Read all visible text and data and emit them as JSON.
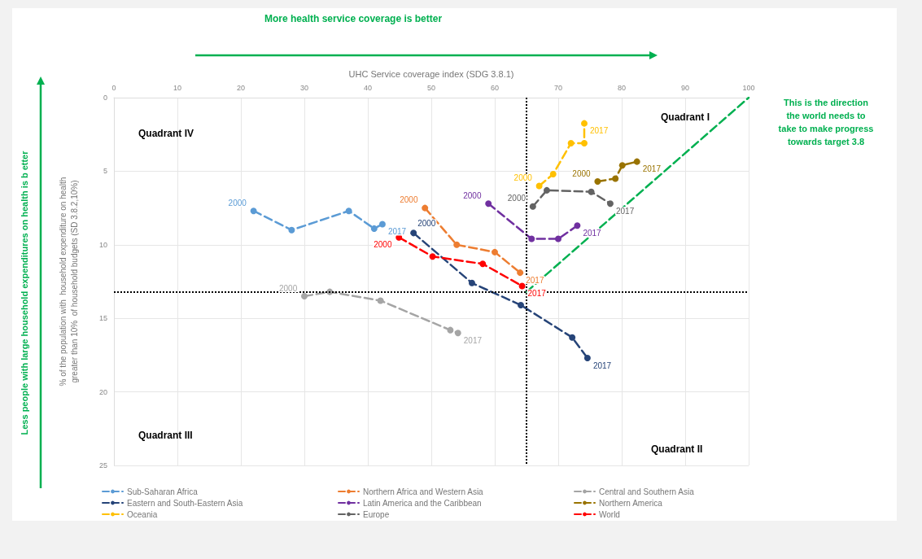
{
  "chart_data": {
    "type": "line",
    "title": "More health service coverage is better",
    "xlabel": "UHC Service coverage index (SDG 3.8.1)",
    "ylabel": "% of the population with  household expenditure on health\ngreater than 10%  of household budgets (SD 3.8.2,10%)",
    "xlim": [
      0,
      100
    ],
    "xticks": [
      0,
      10,
      20,
      30,
      40,
      50,
      60,
      70,
      80,
      90,
      100
    ],
    "ylim": [
      25,
      0
    ],
    "yticks": [
      0,
      5,
      10,
      15,
      20,
      25
    ],
    "grid": true,
    "legend": "bottom",
    "marker": "circle",
    "line_style": "dashed",
    "series": [
      {
        "name": "Sub-Saharan Africa",
        "color": "#5b9bd5",
        "x": [
          22,
          28,
          37,
          41,
          42.3
        ],
        "values": [
          7.7,
          9.0,
          7.7,
          8.9,
          8.6
        ]
      },
      {
        "name": "Northern Africa and Western Asia",
        "color": "#ed7d31",
        "x": [
          49,
          54,
          60,
          64
        ],
        "values": [
          7.5,
          10.0,
          10.5,
          11.9
        ]
      },
      {
        "name": "Central and Southern Asia",
        "color": "#a5a5a5",
        "x": [
          30,
          34,
          42,
          53,
          54.2
        ],
        "values": [
          13.5,
          13.2,
          13.8,
          15.8,
          16.0
        ]
      },
      {
        "name": "Eastern and South-Eastern Asia",
        "color": "#264478",
        "x": [
          47.2,
          56.4,
          64.1,
          72.2,
          74.6
        ],
        "values": [
          9.2,
          12.6,
          14.1,
          16.3,
          17.7
        ]
      },
      {
        "name": "Latin America and the Caribbean",
        "color": "#7030a0",
        "x": [
          59,
          65.8,
          70,
          73
        ],
        "values": [
          7.2,
          9.6,
          9.6,
          8.7
        ]
      },
      {
        "name": "Northern America",
        "color": "#997300",
        "x": [
          76.2,
          79,
          80.1,
          82.4
        ],
        "values": [
          5.7,
          5.5,
          4.6,
          4.35
        ]
      },
      {
        "name": "Oceania",
        "color": "#ffc000",
        "x": [
          67,
          69.2,
          72,
          74.1,
          74.1
        ],
        "values": [
          6.0,
          5.2,
          3.1,
          3.1,
          1.75
        ]
      },
      {
        "name": "Europe",
        "color": "#636363",
        "x": [
          66,
          68.2,
          75.2,
          78.2
        ],
        "values": [
          7.4,
          6.3,
          6.4,
          7.2
        ]
      },
      {
        "name": "World",
        "color": "#ff0000",
        "x": [
          44.9,
          50.2,
          58.1,
          64.3
        ],
        "values": [
          9.5,
          10.8,
          11.3,
          12.8
        ]
      },
      {
        "color": "#00b050",
        "x": [
          65,
          100
        ],
        "values": [
          13.2,
          0
        ],
        "marker": "none"
      }
    ],
    "ref_lines": [
      {
        "axis": "x",
        "value": 65,
        "color": "#000000",
        "line_style": "dotted"
      },
      {
        "axis": "y",
        "value": 13.2,
        "color": "#000000",
        "line_style": "dotted"
      }
    ],
    "annotations": [
      "Quadrant IV",
      "Quadrant I",
      "Quadrant III",
      "Quadrant II",
      "This is the direction\nthe world needs to\ntake to make progress\ntowards target 3.8",
      "Less people with large household expenditures on health is b etter",
      {
        "text": "2000",
        "x": 22,
        "y": 7.7
      },
      {
        "text": "2017",
        "x": 42.3,
        "y": 8.6
      },
      {
        "text": "2000",
        "x": 49,
        "y": 7.5
      },
      {
        "text": "2017",
        "x": 64,
        "y": 11.9
      },
      {
        "text": "2000",
        "x": 30,
        "y": 13.5
      },
      {
        "text": "2017",
        "x": 54.2,
        "y": 16.0
      },
      {
        "text": "2000",
        "x": 47.2,
        "y": 9.2
      },
      {
        "text": "2017",
        "x": 74.6,
        "y": 17.7
      },
      {
        "text": "2000",
        "x": 59,
        "y": 7.2
      },
      {
        "text": "2017",
        "x": 73,
        "y": 8.7
      },
      {
        "text": "2000",
        "x": 76.2,
        "y": 5.7
      },
      {
        "text": "2017",
        "x": 82.4,
        "y": 4.35
      },
      {
        "text": "2000",
        "x": 67,
        "y": 6.0
      },
      {
        "text": "2017",
        "x": 74.1,
        "y": 1.75
      },
      {
        "text": "2000",
        "x": 66,
        "y": 7.4
      },
      {
        "text": "2017",
        "x": 78.2,
        "y": 7.2
      },
      {
        "text": "2000",
        "x": 44.9,
        "y": 9.5
      },
      {
        "text": "2017",
        "x": 64.3,
        "y": 12.8
      }
    ]
  }
}
